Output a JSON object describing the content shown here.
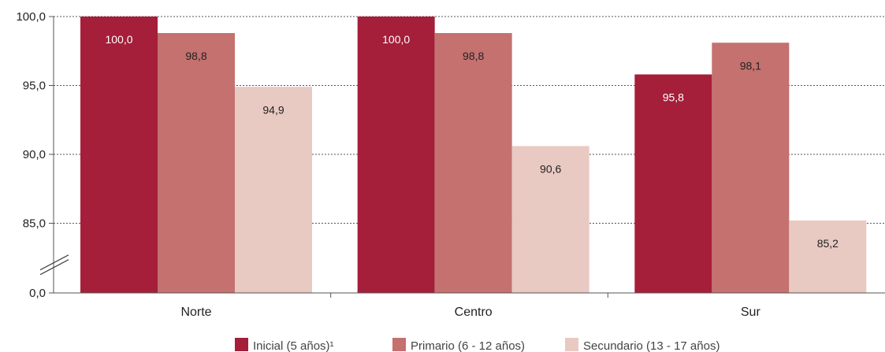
{
  "chart_data": {
    "type": "bar",
    "categories": [
      "Norte",
      "Centro",
      "Sur"
    ],
    "series": [
      {
        "name": "Inicial (5 años)¹",
        "values": [
          100.0,
          100.0,
          95.8
        ],
        "color": "#a51e3a",
        "label_color": "#ffffff"
      },
      {
        "name": "Primario (6 - 12 años)",
        "values": [
          98.8,
          98.8,
          98.1
        ],
        "color": "#c4716f",
        "label_color": "#222222"
      },
      {
        "name": "Secundario (13 - 17 años)",
        "values": [
          94.9,
          90.6,
          85.2
        ],
        "color": "#e8cac2",
        "label_color": "#222222"
      }
    ],
    "value_labels": [
      [
        "100,0",
        "98,8",
        "94,9"
      ],
      [
        "100,0",
        "98,8",
        "90,6"
      ],
      [
        "95,8",
        "98,1",
        "85,2"
      ]
    ],
    "y_ticks": [
      {
        "value": 100,
        "label": "100,0"
      },
      {
        "value": 95,
        "label": "95,0"
      },
      {
        "value": 90,
        "label": "90,0"
      },
      {
        "value": 85,
        "label": "85,0"
      },
      {
        "value": 0,
        "label": "0,0"
      }
    ],
    "ylim": [
      0,
      100
    ],
    "axis_break": [
      0,
      85
    ],
    "grid": true,
    "legend_position": "bottom-center",
    "title": "",
    "xlabel": "",
    "ylabel": ""
  }
}
